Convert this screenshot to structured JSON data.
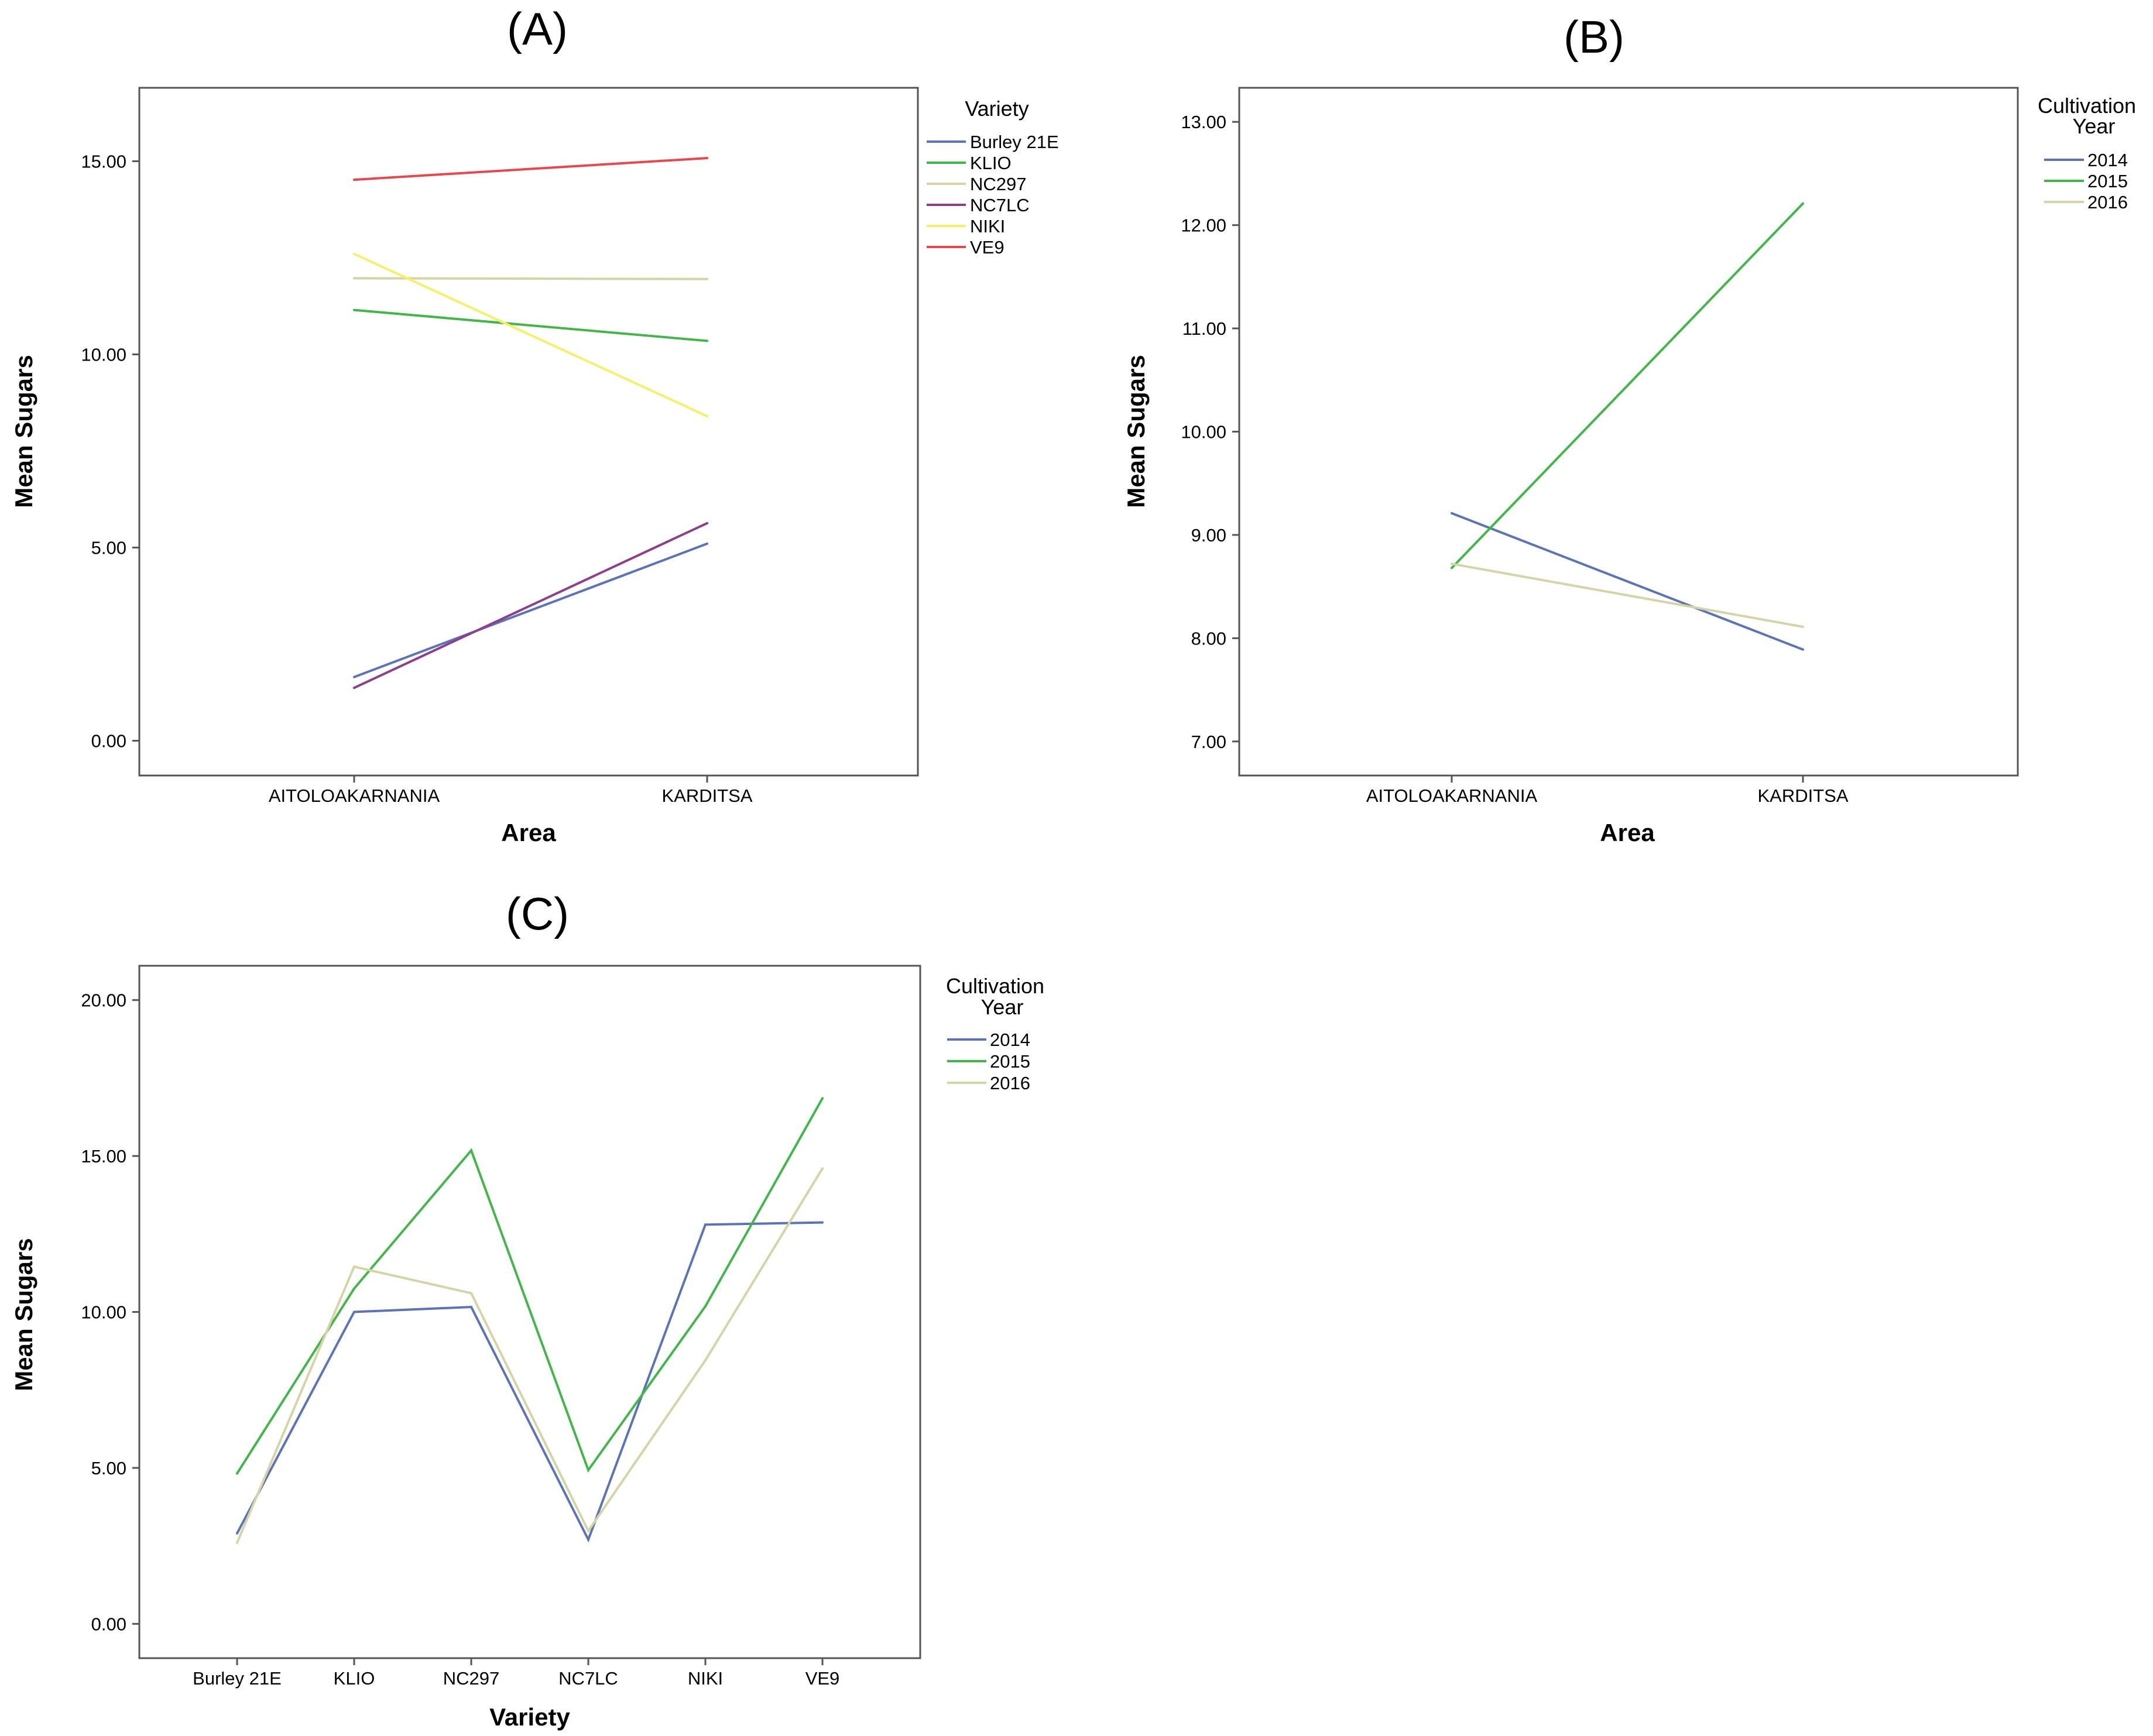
{
  "panels": [
    {
      "label": "(A)",
      "chart_data": {
        "type": "line",
        "title": "",
        "xlabel": "Area",
        "ylabel": "Mean Sugars",
        "categories": [
          "AITOLOAKARNANIA",
          "KARDITSA"
        ],
        "ylim": [
          -0.9,
          16.9
        ],
        "yticks": [
          "0.00",
          "5.00",
          "10.00",
          "15.00"
        ],
        "ytick_values": [
          0,
          5,
          10,
          15
        ],
        "grid": false,
        "legend": {
          "title": "Variety",
          "position": "right"
        },
        "series": [
          {
            "name": "Burley 21E",
            "color": "#5b74b8",
            "values": [
              1.65,
              5.1
            ]
          },
          {
            "name": "KLIO",
            "color": "#41b649",
            "values": [
              11.15,
              10.35
            ]
          },
          {
            "name": "NC297",
            "color": "#d6d3a6",
            "values": [
              11.97,
              11.95
            ]
          },
          {
            "name": "NC7LC",
            "color": "#8d3f8e",
            "values": [
              1.37,
              5.63
            ]
          },
          {
            "name": "NIKI",
            "color": "#f5f06a",
            "values": [
              12.6,
              8.4
            ]
          },
          {
            "name": "VE9",
            "color": "#e8474d",
            "values": [
              14.52,
              15.08
            ]
          }
        ]
      }
    },
    {
      "label": "(B)",
      "chart_data": {
        "type": "line",
        "title": "",
        "xlabel": "Area",
        "ylabel": "Mean Sugars",
        "categories": [
          "AITOLOAKARNANIA",
          "KARDITSA"
        ],
        "ylim": [
          6.67,
          13.33
        ],
        "yticks": [
          "7.00",
          "8.00",
          "9.00",
          "10.00",
          "11.00",
          "12.00",
          "13.00"
        ],
        "ytick_values": [
          7,
          8,
          9,
          10,
          11,
          12,
          13
        ],
        "grid": false,
        "legend": {
          "title_line1": "Cultivation",
          "title_line2": "Year",
          "position": "right"
        },
        "series": [
          {
            "name": "2014",
            "color": "#5b74b8",
            "values": [
              9.21,
              7.89
            ]
          },
          {
            "name": "2015",
            "color": "#41b649",
            "values": [
              8.68,
              12.21
            ]
          },
          {
            "name": "2016",
            "color": "#d6d3a6",
            "values": [
              8.72,
              8.11
            ]
          }
        ]
      }
    },
    {
      "label": "(C)",
      "chart_data": {
        "type": "line",
        "title": "",
        "xlabel": "Variety",
        "ylabel": "Mean Sugars",
        "categories": [
          "Burley 21E",
          "KLIO",
          "NC297",
          "NC7LC",
          "NIKI",
          "VE9"
        ],
        "ylim": [
          -1.1,
          21.1
        ],
        "yticks": [
          "0.00",
          "5.00",
          "10.00",
          "15.00",
          "20.00"
        ],
        "ytick_values": [
          0,
          5,
          10,
          15,
          20
        ],
        "grid": false,
        "legend": {
          "title_line1": "Cultivation",
          "title_line2": "Year",
          "position": "right"
        },
        "series": [
          {
            "name": "2014",
            "color": "#5b74b8",
            "values": [
              2.9,
              10.0,
              10.16,
              2.7,
              12.8,
              12.87
            ]
          },
          {
            "name": "2015",
            "color": "#41b649",
            "values": [
              4.82,
              10.75,
              15.18,
              4.93,
              10.18,
              16.85
            ]
          },
          {
            "name": "2016",
            "color": "#d6d3a6",
            "values": [
              2.6,
              11.45,
              10.6,
              2.98,
              8.45,
              14.6
            ]
          }
        ]
      }
    }
  ]
}
